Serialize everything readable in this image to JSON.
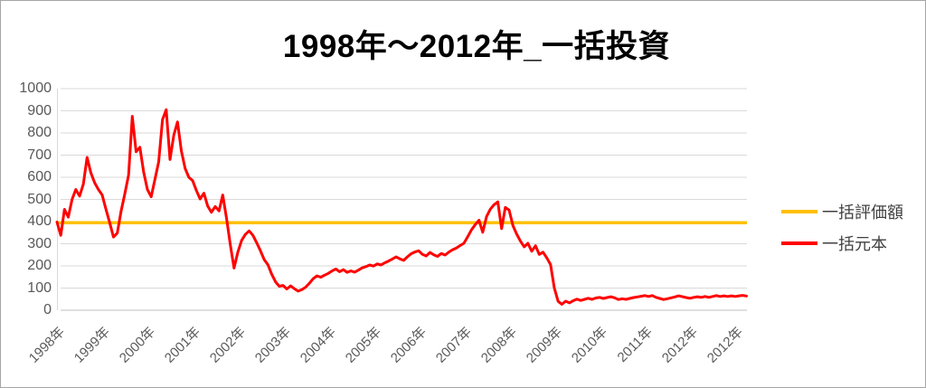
{
  "window": {
    "background": "#ffffff",
    "border_color": "#a6a6a6"
  },
  "chart": {
    "title": "1998年～2012年_一括投資",
    "legend": [
      {
        "label": "一括評価額",
        "color": "#FFC000"
      },
      {
        "label": "一括元本",
        "color": "#FF0000"
      }
    ],
    "colors": {
      "gridline": "#D9D9D9",
      "zero_axis_line": "#BFBFBF",
      "y_axis_line": "#D9D9D9",
      "axis_text": "#595959",
      "legend_text": "#404040",
      "title_text": "#000000"
    }
  },
  "chart_data": {
    "type": "line",
    "title": "1998年～2012年_一括投資",
    "xlabel": "",
    "ylabel": "",
    "ylim": [
      0,
      1000
    ],
    "y_ticks": [
      0,
      100,
      200,
      300,
      400,
      500,
      600,
      700,
      800,
      900,
      1000
    ],
    "x_tick_labels": [
      "1998年",
      "1999年",
      "2000年",
      "2001年",
      "2002年",
      "2003年",
      "2004年",
      "2005年",
      "2006年",
      "2007年",
      "2008年",
      "2009年",
      "2010年",
      "2011年",
      "2012年",
      "2012年"
    ],
    "points_per_tick_interval": 12,
    "grid": "horizontal",
    "legend_position": "right",
    "series": [
      {
        "name": "一括評価額",
        "color": "#FFC000",
        "style": "constant",
        "value": 395
      },
      {
        "name": "一括元本",
        "color": "#FF0000",
        "style": "jagged",
        "values": [
          398,
          338,
          455,
          420,
          500,
          545,
          515,
          570,
          690,
          620,
          575,
          545,
          520,
          455,
          395,
          330,
          348,
          445,
          525,
          610,
          875,
          715,
          735,
          625,
          545,
          512,
          590,
          670,
          860,
          905,
          680,
          790,
          850,
          720,
          640,
          600,
          585,
          540,
          502,
          528,
          470,
          442,
          468,
          448,
          520,
          415,
          295,
          190,
          262,
          315,
          342,
          358,
          338,
          305,
          268,
          228,
          205,
          162,
          128,
          108,
          112,
          96,
          110,
          97,
          86,
          93,
          104,
          122,
          142,
          155,
          149,
          158,
          166,
          177,
          186,
          174,
          183,
          171,
          177,
          172,
          181,
          191,
          197,
          204,
          199,
          209,
          204,
          214,
          222,
          231,
          241,
          232,
          225,
          241,
          255,
          263,
          268,
          252,
          245,
          261,
          250,
          243,
          256,
          249,
          262,
          273,
          281,
          292,
          302,
          332,
          362,
          386,
          406,
          352,
          422,
          456,
          476,
          489,
          368,
          464,
          452,
          382,
          344,
          312,
          286,
          302,
          266,
          291,
          252,
          262,
          236,
          206,
          100,
          40,
          27,
          41,
          33,
          43,
          50,
          44,
          49,
          54,
          49,
          55,
          58,
          53,
          57,
          61,
          56,
          48,
          52,
          49,
          53,
          57,
          60,
          63,
          66,
          62,
          66,
          58,
          53,
          48,
          52,
          56,
          60,
          65,
          61,
          57,
          54,
          58,
          61,
          58,
          62,
          58,
          62,
          66,
          62,
          65,
          62,
          65,
          62,
          65,
          67,
          64
        ]
      }
    ]
  }
}
